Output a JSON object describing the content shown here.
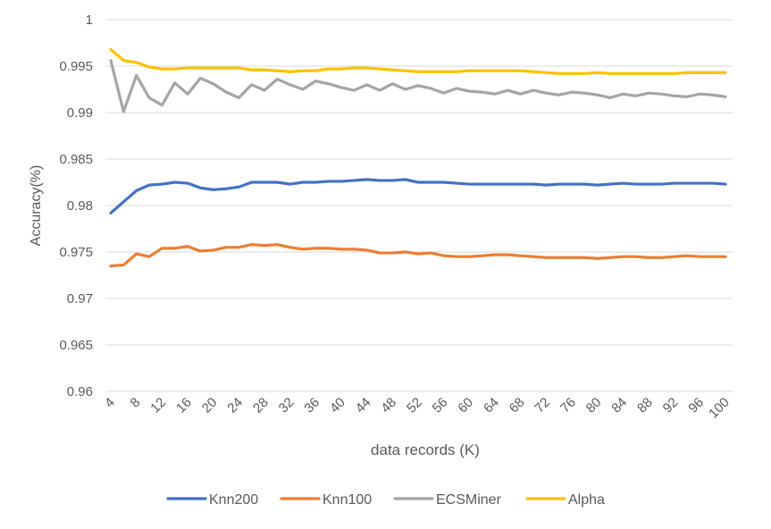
{
  "chart_data": {
    "type": "line",
    "title": "",
    "xlabel": "data records (K)",
    "ylabel": "Accuracy(%)",
    "ylim": [
      0.96,
      1.0
    ],
    "yticks": [
      "0.96",
      "0.965",
      "0.97",
      "0.975",
      "0.98",
      "0.985",
      "0.99",
      "0.995",
      "1"
    ],
    "x": [
      4,
      6,
      8,
      10,
      12,
      14,
      16,
      18,
      20,
      22,
      24,
      26,
      28,
      30,
      32,
      34,
      36,
      38,
      40,
      42,
      44,
      46,
      48,
      50,
      52,
      54,
      56,
      58,
      60,
      62,
      64,
      66,
      68,
      70,
      72,
      74,
      76,
      78,
      80,
      82,
      84,
      86,
      88,
      90,
      92,
      94,
      96,
      98,
      100
    ],
    "xticks": [
      "4",
      "8",
      "12",
      "16",
      "20",
      "24",
      "28",
      "32",
      "36",
      "40",
      "44",
      "48",
      "52",
      "56",
      "60",
      "64",
      "68",
      "72",
      "76",
      "80",
      "84",
      "88",
      "92",
      "96",
      "100"
    ],
    "grid": "horizontal",
    "legend": "bottom",
    "series": [
      {
        "name": "Knn200",
        "color": "#4472C4",
        "values": [
          0.9792,
          0.9804,
          0.9816,
          0.9822,
          0.9823,
          0.9825,
          0.9824,
          0.9819,
          0.9817,
          0.9818,
          0.982,
          0.9825,
          0.9825,
          0.9825,
          0.9823,
          0.9825,
          0.9825,
          0.9826,
          0.9826,
          0.9827,
          0.9828,
          0.9827,
          0.9827,
          0.9828,
          0.9825,
          0.9825,
          0.9825,
          0.9824,
          0.9823,
          0.9823,
          0.9823,
          0.9823,
          0.9823,
          0.9823,
          0.9822,
          0.9823,
          0.9823,
          0.9823,
          0.9822,
          0.9823,
          0.9824,
          0.9823,
          0.9823,
          0.9823,
          0.9824,
          0.9824,
          0.9824,
          0.9824,
          0.9823
        ]
      },
      {
        "name": "Knn100",
        "color": "#ED7D31",
        "values": [
          0.9735,
          0.9736,
          0.9748,
          0.9745,
          0.9754,
          0.9754,
          0.9756,
          0.9751,
          0.9752,
          0.9755,
          0.9755,
          0.9758,
          0.9757,
          0.9758,
          0.9755,
          0.9753,
          0.9754,
          0.9754,
          0.9753,
          0.9753,
          0.9752,
          0.9749,
          0.9749,
          0.975,
          0.9748,
          0.9749,
          0.9746,
          0.9745,
          0.9745,
          0.9746,
          0.9747,
          0.9747,
          0.9746,
          0.9745,
          0.9744,
          0.9744,
          0.9744,
          0.9744,
          0.9743,
          0.9744,
          0.9745,
          0.9745,
          0.9744,
          0.9744,
          0.9745,
          0.9746,
          0.9745,
          0.9745,
          0.9745
        ]
      },
      {
        "name": "ECSMiner",
        "color": "#A5A5A5",
        "values": [
          0.9956,
          0.9901,
          0.994,
          0.9916,
          0.9908,
          0.9932,
          0.992,
          0.9937,
          0.9931,
          0.9922,
          0.9916,
          0.993,
          0.9924,
          0.9936,
          0.993,
          0.9925,
          0.9934,
          0.9931,
          0.9927,
          0.9924,
          0.993,
          0.9924,
          0.9931,
          0.9925,
          0.9929,
          0.9926,
          0.9921,
          0.9926,
          0.9923,
          0.9922,
          0.992,
          0.9924,
          0.992,
          0.9924,
          0.9921,
          0.9919,
          0.9922,
          0.9921,
          0.9919,
          0.9916,
          0.992,
          0.9918,
          0.9921,
          0.992,
          0.9918,
          0.9917,
          0.992,
          0.9919,
          0.9917
        ]
      },
      {
        "name": "Alpha",
        "color": "#FFC000",
        "values": [
          0.9968,
          0.9956,
          0.9954,
          0.9949,
          0.9947,
          0.9947,
          0.9948,
          0.9948,
          0.9948,
          0.9948,
          0.9948,
          0.9946,
          0.9946,
          0.9945,
          0.9944,
          0.9945,
          0.9945,
          0.9947,
          0.9947,
          0.9948,
          0.9948,
          0.9947,
          0.9946,
          0.9945,
          0.9944,
          0.9944,
          0.9944,
          0.9944,
          0.9945,
          0.9945,
          0.9945,
          0.9945,
          0.9945,
          0.9944,
          0.9943,
          0.9942,
          0.9942,
          0.9942,
          0.9943,
          0.9942,
          0.9942,
          0.9942,
          0.9942,
          0.9942,
          0.9942,
          0.9943,
          0.9943,
          0.9943,
          0.9943
        ]
      }
    ]
  }
}
